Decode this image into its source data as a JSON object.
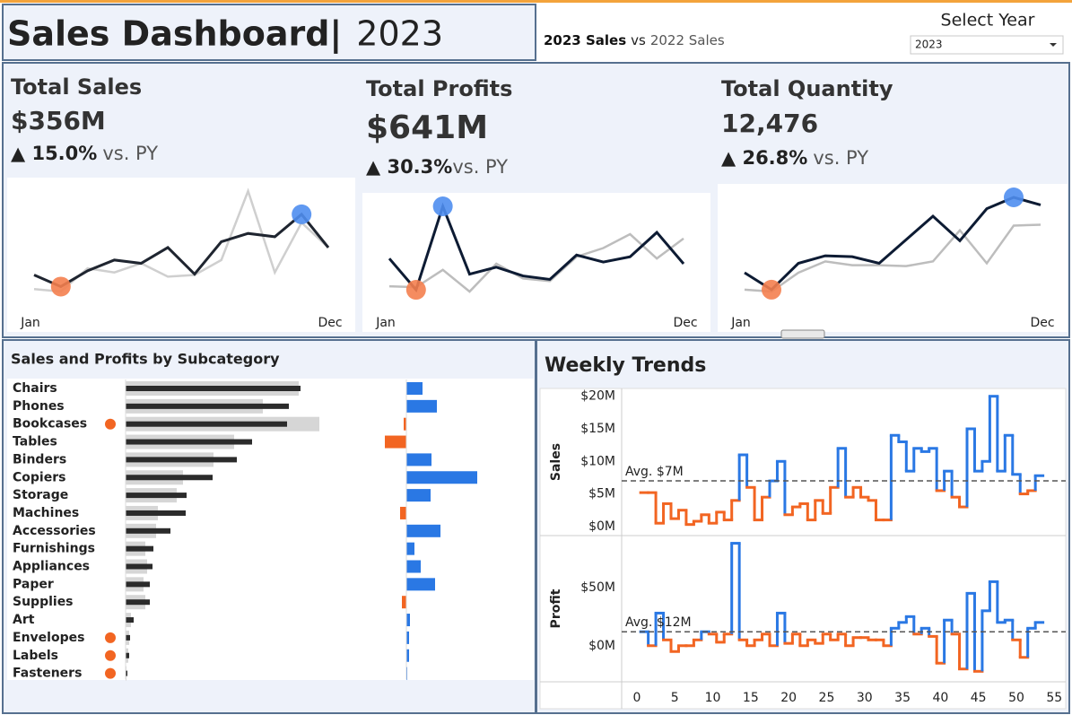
{
  "header": {
    "title": "Sales Dashboard|",
    "year": "2023",
    "compare_current": "2023 Sales",
    "compare_vs": "vs",
    "compare_prior": "2022 Sales",
    "filter_label": "Select Year",
    "filter_value": "2023"
  },
  "kpis": [
    {
      "title": "Total Sales",
      "value": "$356M",
      "change": "▲ 15.0%",
      "vs": "vs. PY"
    },
    {
      "title": "Total Profits",
      "value": "$641M",
      "change": "▲ 30.3%",
      "vs": "vs. PY"
    },
    {
      "title": "Total Quantity",
      "value": "12,476",
      "change": "▲ 26.8%",
      "vs": "vs. PY"
    }
  ],
  "chart_data": [
    {
      "type": "line",
      "categories": [
        "Jan",
        null,
        null,
        null,
        null,
        null,
        null,
        null,
        null,
        null,
        null,
        "Dec"
      ],
      "series": [
        {
          "color": "#1f2530",
          "values": [
            32,
            18,
            37,
            50,
            46,
            65,
            33,
            72,
            82,
            78,
            105,
            65
          ]
        },
        {
          "color": "#cfcfcf",
          "values": [
            15,
            12,
            40,
            35,
            46,
            30,
            32,
            50,
            133,
            35,
            95,
            65
          ]
        }
      ],
      "min_color": "#f4804f",
      "max_color": "#4f8ef0"
    },
    {
      "type": "line",
      "categories": [
        "Jan",
        null,
        null,
        null,
        null,
        null,
        null,
        null,
        null,
        null,
        null,
        "Dec"
      ],
      "series": [
        {
          "color": "#0d1b33",
          "values": [
            48,
            12,
            108,
            30,
            38,
            28,
            24,
            52,
            44,
            50,
            78,
            42
          ]
        },
        {
          "color": "#bdbdbd",
          "values": [
            16,
            15,
            35,
            10,
            42,
            25,
            22,
            50,
            60,
            76,
            48,
            71
          ]
        }
      ],
      "min_color": "#f4804f",
      "max_color": "#4f8ef0"
    },
    {
      "type": "line",
      "categories": [
        "Jan",
        null,
        null,
        null,
        null,
        null,
        null,
        null,
        null,
        null,
        null,
        "Dec"
      ],
      "series": [
        {
          "color": "#0d1b33",
          "values": [
            40,
            22,
            50,
            58,
            57,
            50,
            75,
            100,
            74,
            108,
            120,
            112
          ]
        },
        {
          "color": "#bdbdbd",
          "values": [
            22,
            20,
            40,
            52,
            48,
            48,
            47,
            52,
            85,
            50,
            90,
            91
          ]
        }
      ],
      "min_color": "#f4804f",
      "max_color": "#4f8ef0"
    },
    {
      "type": "hbar",
      "title": "Sales and Profits by Subcategory",
      "categories": [
        "Chairs",
        "Phones",
        "Bookcases",
        "Tables",
        "Binders",
        "Copiers",
        "Storage",
        "Machines",
        "Accessories",
        "Furnishings",
        "Appliances",
        "Paper",
        "Supplies",
        "Art",
        "Envelopes",
        "Labels",
        "Fasteners"
      ],
      "series": [
        {
          "color": "#d6d6d6",
          "values": [
            193,
            153,
            216,
            121,
            98,
            64,
            57,
            36,
            34,
            22,
            24,
            20,
            22,
            6,
            4,
            3,
            1
          ]
        },
        {
          "color": "#2b2b2b",
          "values": [
            195,
            182,
            180,
            141,
            124,
            97,
            68,
            67,
            50,
            31,
            30,
            27,
            27,
            9,
            5,
            4,
            2
          ]
        },
        {
          "color": "#2a78e4",
          "negative_color": "#f26522",
          "values": [
            18,
            34,
            -3,
            -24,
            28,
            79,
            27,
            -7,
            38,
            9,
            16,
            32,
            -5,
            4,
            3,
            3,
            1
          ]
        }
      ],
      "flags": [
        false,
        false,
        true,
        false,
        false,
        false,
        false,
        false,
        false,
        false,
        false,
        false,
        false,
        false,
        true,
        true,
        true
      ],
      "flag_color": "#f26522"
    },
    {
      "type": "step",
      "title": "Weekly Trends",
      "ylabel": "Sales",
      "x": [
        1,
        2,
        3,
        4,
        5,
        6,
        7,
        8,
        9,
        10,
        11,
        12,
        13,
        14,
        15,
        16,
        17,
        18,
        19,
        20,
        21,
        22,
        23,
        24,
        25,
        26,
        27,
        28,
        29,
        30,
        31,
        32,
        33,
        34,
        35,
        36,
        37,
        38,
        39,
        40,
        41,
        42,
        43,
        44,
        45,
        46,
        47,
        48,
        49,
        50,
        51,
        52,
        53
      ],
      "values": [
        5.2,
        5.2,
        0.5,
        3.5,
        1.2,
        2.5,
        0.3,
        0.8,
        1.8,
        0.5,
        2.2,
        1.0,
        4.0,
        11.0,
        6.0,
        1.0,
        4.5,
        7.0,
        10.0,
        1.8,
        3.0,
        3.5,
        1.0,
        4.0,
        2.0,
        6.0,
        12.0,
        4.5,
        6.0,
        4.5,
        4.0,
        1.0,
        1.0,
        14.0,
        13.0,
        8.5,
        12.0,
        11.5,
        12.0,
        5.5,
        8.5,
        4.5,
        3.0,
        15.0,
        8.5,
        10.0,
        20.0,
        8.5,
        14.0,
        8.0,
        5.0,
        5.5,
        7.8
      ],
      "xlim": [
        -2,
        56.5
      ],
      "ylim": [
        -1.4,
        21.2
      ],
      "yticks": [
        {
          "value": 0,
          "label": "$0M"
        },
        {
          "value": 5,
          "label": "$5M"
        },
        {
          "value": 10,
          "label": "$10M"
        },
        {
          "value": 15,
          "label": "$15M"
        },
        {
          "value": 20,
          "label": "$20M"
        }
      ],
      "average": {
        "value": 7,
        "label": "Avg. $7M"
      },
      "above_color": "#2a78e4",
      "below_color": "#f26522"
    },
    {
      "type": "step",
      "ylabel": "Profit",
      "x": [
        1,
        2,
        3,
        4,
        5,
        6,
        7,
        8,
        9,
        10,
        11,
        12,
        13,
        14,
        15,
        16,
        17,
        18,
        19,
        20,
        21,
        22,
        23,
        24,
        25,
        26,
        27,
        28,
        29,
        30,
        31,
        32,
        33,
        34,
        35,
        36,
        37,
        38,
        39,
        40,
        41,
        42,
        43,
        44,
        45,
        46,
        47,
        48,
        49,
        50,
        51,
        52,
        53
      ],
      "values": [
        12,
        0,
        28,
        5,
        -5,
        0,
        0,
        5,
        12,
        10,
        3,
        10,
        88,
        5,
        0,
        5,
        10,
        0,
        28,
        2,
        10,
        0,
        5,
        2,
        10,
        5,
        10,
        0,
        7,
        7,
        5,
        5,
        0,
        15,
        20,
        25,
        10,
        15,
        8,
        -15,
        22,
        10,
        -20,
        45,
        -22,
        30,
        55,
        20,
        22,
        5,
        -10,
        15,
        20
      ],
      "xlim": [
        -2,
        56.5
      ],
      "ylim": [
        -31,
        94.6
      ],
      "xticks": [
        0,
        5,
        10,
        15,
        20,
        25,
        30,
        35,
        40,
        45,
        50,
        55
      ],
      "yticks": [
        {
          "value": 0,
          "label": "$0M"
        },
        {
          "value": 50,
          "label": "$50M"
        }
      ],
      "average": {
        "value": 12,
        "label": "Avg. $12M"
      },
      "above_color": "#2a78e4",
      "below_color": "#f26522"
    }
  ]
}
